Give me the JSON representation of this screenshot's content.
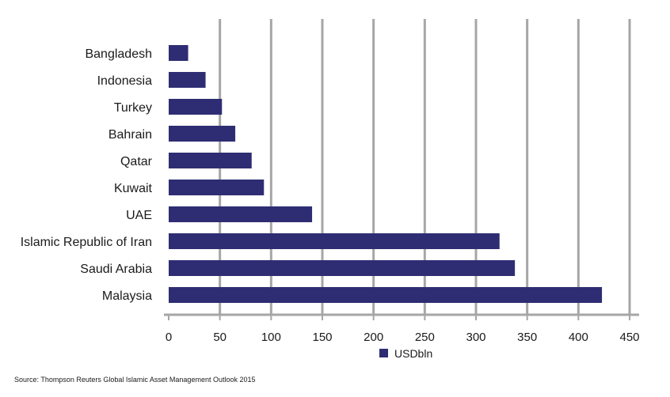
{
  "chart_data": {
    "type": "bar",
    "orientation": "horizontal",
    "categories": [
      "Bangladesh",
      "Indonesia",
      "Turkey",
      "Bahrain",
      "Qatar",
      "Kuwait",
      "UAE",
      "Islamic Republic of Iran",
      "Saudi Arabia",
      "Malaysia"
    ],
    "series": [
      {
        "name": "USDbln",
        "values": [
          19,
          36,
          52,
          65,
          81,
          93,
          140,
          323,
          338,
          423
        ]
      }
    ],
    "xlim": [
      0,
      450
    ],
    "xticks": [
      0,
      50,
      100,
      150,
      200,
      250,
      300,
      350,
      400,
      450
    ],
    "grid": "vertical",
    "legend": "bottom-center",
    "colors": {
      "bar": "#2e2d73",
      "grid": "#a6a6a6",
      "axis": "#a6a6a6"
    }
  },
  "source": "Source: Thompson Reuters Global Islamic Asset Management Outlook 2015"
}
